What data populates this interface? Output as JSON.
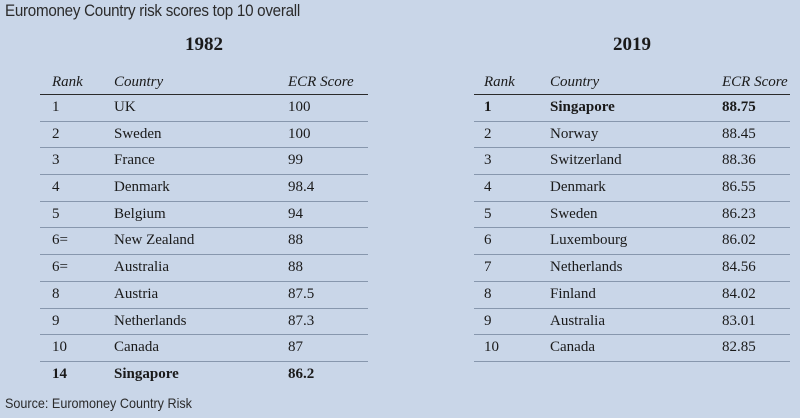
{
  "title": "Euromoney Country risk scores top 10 overall",
  "source": "Source: Euromoney Country Risk",
  "tables": [
    {
      "year": "1982",
      "headers": [
        "Rank",
        "Country",
        "ECR Score"
      ],
      "rows": [
        {
          "rank": "1",
          "country": "UK",
          "score": "100"
        },
        {
          "rank": "2",
          "country": "Sweden",
          "score": "100"
        },
        {
          "rank": "3",
          "country": "France",
          "score": "99"
        },
        {
          "rank": "4",
          "country": "Denmark",
          "score": "98.4"
        },
        {
          "rank": "5",
          "country": "Belgium",
          "score": "94"
        },
        {
          "rank": "6=",
          "country": "New Zealand",
          "score": "88"
        },
        {
          "rank": "6=",
          "country": "Australia",
          "score": "88"
        },
        {
          "rank": "8",
          "country": "Austria",
          "score": "87.5"
        },
        {
          "rank": "9",
          "country": "Netherlands",
          "score": "87.3"
        },
        {
          "rank": "10",
          "country": "Canada",
          "score": "87"
        },
        {
          "rank": "14",
          "country": "Singapore",
          "score": "86.2"
        }
      ]
    },
    {
      "year": "2019",
      "headers": [
        "Rank",
        "Country",
        "ECR Score"
      ],
      "rows": [
        {
          "rank": "1",
          "country": "Singapore",
          "score": "88.75"
        },
        {
          "rank": "2",
          "country": "Norway",
          "score": "88.45"
        },
        {
          "rank": "3",
          "country": "Switzerland",
          "score": "88.36"
        },
        {
          "rank": "4",
          "country": "Denmark",
          "score": "86.55"
        },
        {
          "rank": "5",
          "country": "Sweden",
          "score": "86.23"
        },
        {
          "rank": "6",
          "country": "Luxembourg",
          "score": "86.02"
        },
        {
          "rank": "7",
          "country": "Netherlands",
          "score": "84.56"
        },
        {
          "rank": "8",
          "country": "Finland",
          "score": "84.02"
        },
        {
          "rank": "9",
          "country": "Australia",
          "score": "83.01"
        },
        {
          "rank": "10",
          "country": "Canada",
          "score": "82.85"
        }
      ]
    }
  ]
}
